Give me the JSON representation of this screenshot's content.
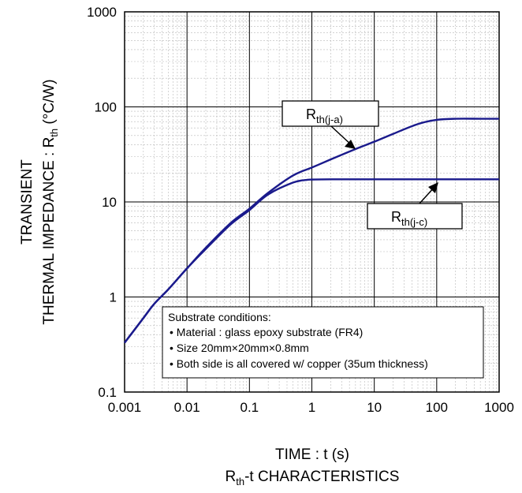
{
  "chart_data": {
    "type": "line",
    "x_scale": "log",
    "y_scale": "log",
    "xlim": [
      0.001,
      1000
    ],
    "ylim": [
      0.1,
      1000
    ],
    "x_ticks": [
      "0.001",
      "0.01",
      "0.1",
      "1",
      "10",
      "100",
      "1000"
    ],
    "y_ticks": [
      "0.1",
      "1",
      "10",
      "100",
      "1000"
    ],
    "grid": true,
    "xlabel": "TIME : t (s)",
    "ylabel_line1": "TRANSIENT",
    "ylabel_line2_prefix": "THERMAL IMPEDANCE : R",
    "ylabel_line2_sub": "th",
    "ylabel_line2_suffix": " (°C/W)",
    "caption_prefix": "R",
    "caption_sub": "th",
    "caption_suffix": "-t CHARACTERISTICS",
    "line_color": "#1a1a8c",
    "series": [
      {
        "label_main": "R",
        "label_sub": "th(j-a)",
        "x": [
          0.001,
          0.002,
          0.003,
          0.005,
          0.01,
          0.02,
          0.05,
          0.1,
          0.2,
          0.5,
          1,
          2,
          5,
          10,
          20,
          50,
          100,
          200,
          500,
          1000
        ],
        "y": [
          0.33,
          0.6,
          0.85,
          1.2,
          2.0,
          3.3,
          6.0,
          8.5,
          12.5,
          19,
          23,
          28,
          36,
          43,
          52,
          66,
          73,
          75,
          75,
          75
        ]
      },
      {
        "label_main": "R",
        "label_sub": "th(j-c)",
        "x": [
          0.001,
          0.002,
          0.003,
          0.005,
          0.01,
          0.02,
          0.05,
          0.1,
          0.2,
          0.5,
          0.8,
          1,
          2,
          5,
          10,
          100,
          1000
        ],
        "y": [
          0.33,
          0.6,
          0.85,
          1.2,
          2.0,
          3.2,
          5.8,
          8.2,
          12,
          16,
          17,
          17.2,
          17.3,
          17.3,
          17.3,
          17.3,
          17.3
        ]
      }
    ],
    "annotation": {
      "title": "Substrate conditions:",
      "lines": [
        "• Material : glass epoxy substrate (FR4)",
        "• Size 20mm×20mm×0.8mm",
        "• Both side is all covered w/ copper (35um thickness)"
      ]
    }
  }
}
